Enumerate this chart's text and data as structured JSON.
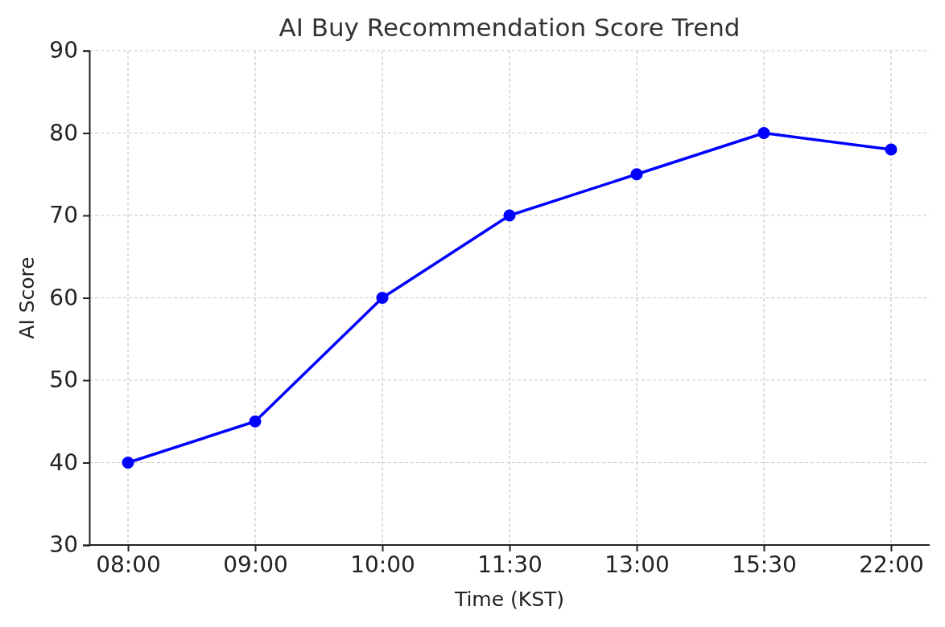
{
  "chart_data": {
    "type": "line",
    "title": "AI Buy Recommendation Score Trend",
    "xlabel": "Time (KST)",
    "ylabel": "AI Score",
    "categories": [
      "08:00",
      "09:00",
      "10:00",
      "11:30",
      "13:00",
      "15:30",
      "22:00"
    ],
    "series": [
      {
        "color": "#0000ff",
        "values": [
          40,
          45,
          60,
          70,
          75,
          80,
          78
        ]
      }
    ],
    "ylim": [
      30,
      90
    ],
    "yticks": [
      30,
      40,
      50,
      60,
      70,
      80,
      90
    ],
    "grid": true,
    "marker": "circle",
    "line_style": "solid"
  }
}
